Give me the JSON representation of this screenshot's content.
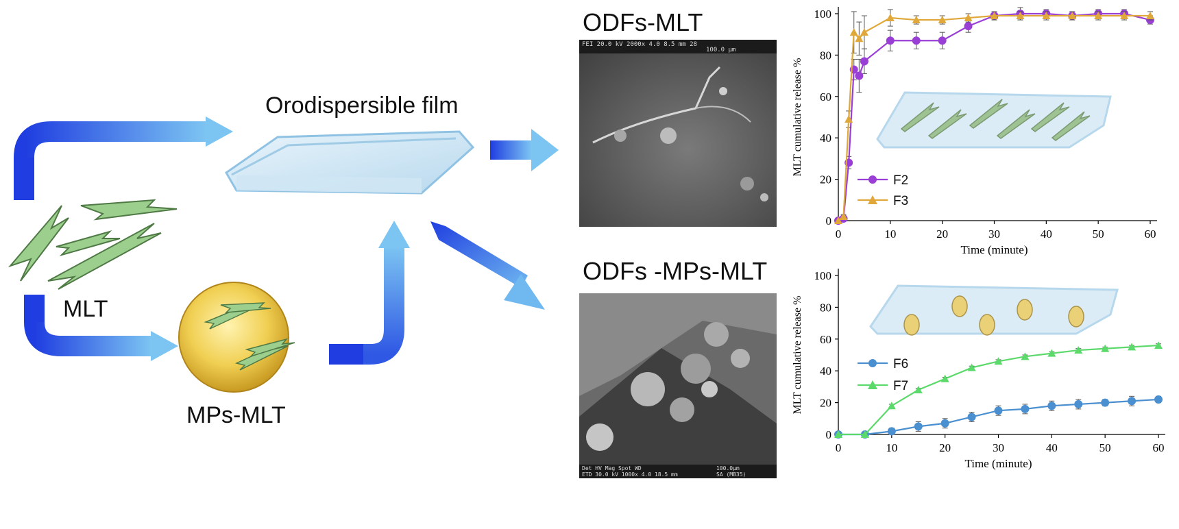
{
  "labels": {
    "film": "Orodispersible film",
    "mlt": "MLT",
    "mps_mlt": "MPs-MLT",
    "odfs_mlt": "ODFs-MLT",
    "odfs_mps_mlt": "ODFs -MPs-MLT"
  },
  "sem_top": {
    "info": "FEI  20.0 kV  2000x  4.0  8.5 mm   28",
    "scale": "100.0 μm"
  },
  "sem_bottom": {
    "info_left": "Det  HV     Mag   Spot   WD",
    "info_left2": "ETD  30.0 kV  1000x  4.0  18.5 mm",
    "scale": "100.0μm",
    "id": "SA (MB35)"
  },
  "colors": {
    "arrow_dark": "#1f3de0",
    "arrow_light": "#6fb8f0",
    "F2": "#9a3fd6",
    "F3": "#e0a83a",
    "F6": "#4a8fd0",
    "F7": "#5bd96a",
    "axis": "#000000"
  },
  "chart_data": [
    {
      "type": "line",
      "xlabel": "Time (minute)",
      "ylabel": "MLT cumulative release %",
      "xlim": [
        0,
        60
      ],
      "ylim": [
        0,
        100
      ],
      "xticks": [
        0,
        10,
        20,
        30,
        40,
        50,
        60
      ],
      "yticks": [
        0,
        20,
        40,
        60,
        80,
        100
      ],
      "series": [
        {
          "name": "F2",
          "marker": "circle",
          "x": [
            0,
            1,
            2,
            3,
            4,
            5,
            10,
            15,
            20,
            25,
            30,
            35,
            40,
            45,
            50,
            55,
            60
          ],
          "y": [
            0,
            1,
            28,
            73,
            70,
            77,
            87,
            87,
            87,
            94,
            99,
            100,
            100,
            99,
            100,
            100,
            97
          ],
          "err": [
            0,
            1,
            3,
            5,
            8,
            6,
            5,
            4,
            4,
            3,
            2,
            3,
            2,
            2,
            2,
            2,
            2
          ]
        },
        {
          "name": "F3",
          "marker": "triangle",
          "x": [
            0,
            1,
            2,
            3,
            4,
            5,
            10,
            15,
            20,
            25,
            30,
            35,
            40,
            45,
            50,
            55,
            60
          ],
          "y": [
            0,
            2,
            49,
            91,
            88,
            91,
            98,
            97,
            97,
            98,
            99,
            99,
            99,
            99,
            99,
            99,
            99
          ],
          "err": [
            0,
            1,
            4,
            10,
            8,
            8,
            4,
            2,
            2,
            2,
            2,
            2,
            2,
            2,
            2,
            2,
            2
          ]
        }
      ]
    },
    {
      "type": "line",
      "xlabel": "Time (minute)",
      "ylabel": "MLT cumulative release %",
      "xlim": [
        0,
        60
      ],
      "ylim": [
        0,
        100
      ],
      "xticks": [
        0,
        10,
        20,
        30,
        40,
        50,
        60
      ],
      "yticks": [
        0,
        20,
        40,
        60,
        80,
        100
      ],
      "series": [
        {
          "name": "F6",
          "marker": "circle",
          "x": [
            0,
            5,
            10,
            15,
            20,
            25,
            30,
            35,
            40,
            45,
            50,
            55,
            60
          ],
          "y": [
            0,
            0,
            2,
            5,
            7,
            11,
            15,
            16,
            18,
            19,
            20,
            21,
            22
          ],
          "err": [
            0,
            0,
            2,
            3,
            3,
            3,
            3,
            3,
            3,
            3,
            2,
            3,
            2
          ]
        },
        {
          "name": "F7",
          "marker": "triangle",
          "x": [
            0,
            5,
            10,
            15,
            20,
            25,
            30,
            35,
            40,
            45,
            50,
            55,
            60
          ],
          "y": [
            0,
            0,
            18,
            28,
            35,
            42,
            46,
            49,
            51,
            53,
            54,
            55,
            56
          ],
          "err": [
            0,
            0,
            1,
            1,
            1,
            1,
            1,
            1,
            1,
            1,
            1,
            1,
            1
          ]
        }
      ]
    }
  ]
}
